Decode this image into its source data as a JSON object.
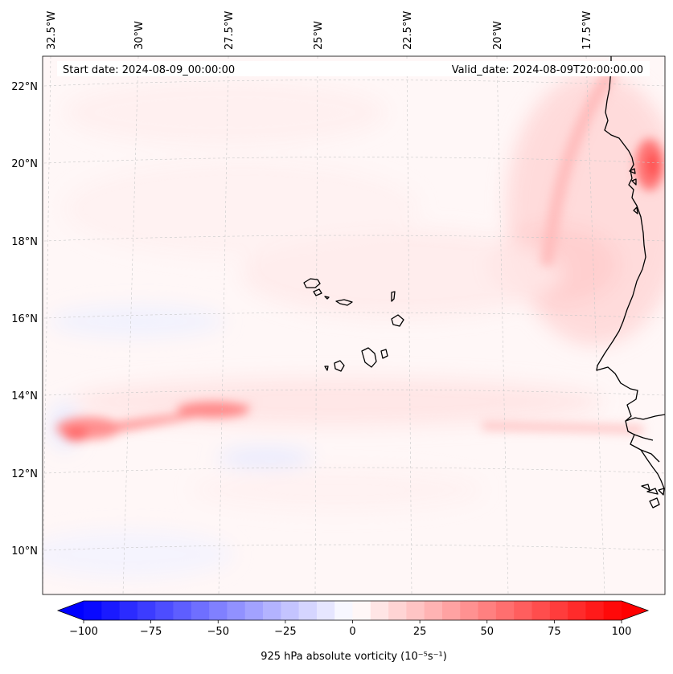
{
  "header": {
    "start_date": "Start date: 2024-08-09_00:00:00",
    "valid_date": "Valid_date: 2024-08-09T20:00:00.00"
  },
  "longitude_labels": [
    "32.5°W",
    "30°W",
    "27.5°W",
    "25°W",
    "22.5°W",
    "20°W",
    "17.5°W"
  ],
  "latitude_labels": [
    "22°N",
    "20°N",
    "18°N",
    "16°N",
    "14°N",
    "12°N",
    "10°N"
  ],
  "colorbar": {
    "label": "925 hPa absolute vorticity (10⁻⁵s⁻¹)",
    "ticks": [
      "−100",
      "−75",
      "−50",
      "−25",
      "0",
      "25",
      "50",
      "75",
      "100"
    ],
    "min": -100,
    "max": 100,
    "levels": 30,
    "negative_color": "#0000ff",
    "positive_color": "#ff0000"
  },
  "colors": {
    "coastline": "#000000",
    "gridline": "#c8c8c8",
    "background": "#fff7f7"
  }
}
